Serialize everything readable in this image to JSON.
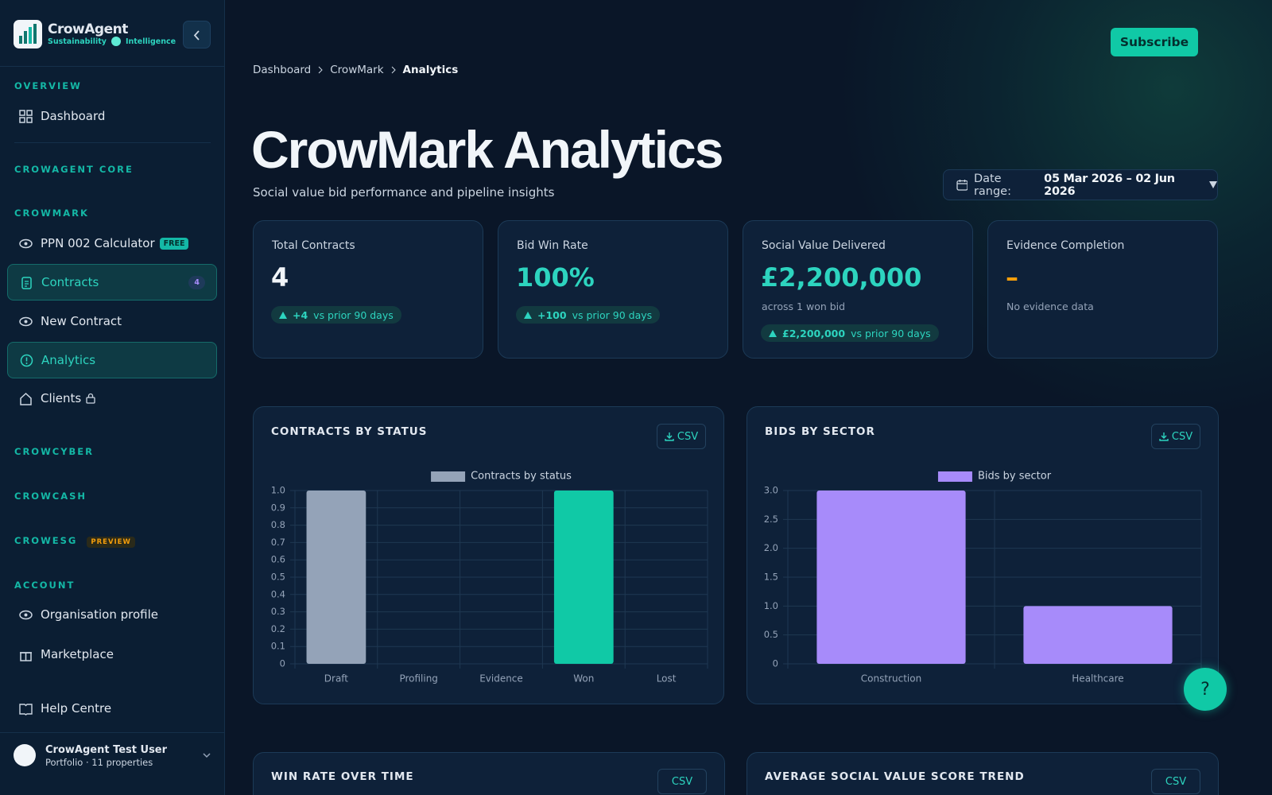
{
  "sidebar": {
    "brand": "CrowAgent",
    "tagline_left": "Sustainability",
    "tagline_right": "Intelligence",
    "overview": "OVERVIEW",
    "dashboard": "Dashboard",
    "core": "CROWAGENT CORE",
    "crowmark": "CROWMARK",
    "items": [
      {
        "label": "PPN 002 Calculator",
        "badge": "FREE"
      },
      {
        "label": "Contracts",
        "badge": 4
      },
      {
        "label": "New Contract"
      },
      {
        "label": "Analytics"
      },
      {
        "label": "Clients"
      }
    ],
    "crowcyber": "CROWCYBER",
    "crowcash": "CROWCASH",
    "crowesg": "CROWESG",
    "crowesg_badge": "PREVIEW",
    "account": "ACCOUNT",
    "account_items": [
      "Organisation profile",
      "Marketplace"
    ],
    "help": "Help Centre",
    "user": {
      "name": "CrowAgent Test User",
      "detail": "Portfolio · 11 properties"
    }
  },
  "header": {
    "subscribe": "Subscribe",
    "breadcrumb": [
      "Dashboard",
      "CrowMark",
      "Analytics"
    ],
    "title": "CrowMark Analytics",
    "subtitle": "Social value bid performance and pipeline insights",
    "date_range": {
      "label": "Date range:",
      "value": "05 Mar 2026 – 02 Jun 2026"
    }
  },
  "kpis": [
    {
      "label": "Total Contracts",
      "value": "4",
      "delta": "+4",
      "delta_text": "vs prior 90 days"
    },
    {
      "label": "Bid Win Rate",
      "value": "100%",
      "delta": "+100",
      "delta_text": "vs prior 90 days"
    },
    {
      "label": "Social Value Delivered",
      "value": "£2,200,000",
      "note": "across 1 won bid",
      "delta": "£2,200,000",
      "delta_text": "vs prior 90 days"
    },
    {
      "label": "Evidence Completion",
      "value": "–",
      "note": "No evidence data"
    }
  ],
  "chart_actions": [
    "CSV",
    "CSV",
    "CSV",
    "CSV"
  ],
  "chart_data": [
    {
      "type": "bar",
      "title": "CONTRACTS BY STATUS",
      "categories": [
        "Draft",
        "Profiling",
        "Evidence",
        "Won",
        "Lost"
      ],
      "series": [
        {
          "name": "Contracts by status",
          "color": "#94a3b8",
          "values": [
            1,
            0,
            0,
            1,
            0
          ],
          "bar_colors": [
            "#94a3b8",
            "#94a3b8",
            "#94a3b8",
            "#10c9a6",
            "#94a3b8"
          ]
        }
      ],
      "ylim": [
        0,
        1
      ],
      "yticks": [
        0,
        0.1,
        0.2,
        0.3,
        0.4,
        0.5,
        0.6,
        0.7,
        0.8,
        0.9,
        {
          "value": 1,
          "label": "1.0"
        }
      ],
      "grid": true
    },
    {
      "type": "bar",
      "title": "BIDS BY SECTOR",
      "categories": [
        "Construction",
        "Healthcare"
      ],
      "series": [
        {
          "name": "Bids by sector",
          "color": "#a78bfa",
          "values": [
            3,
            1
          ],
          "bar_colors": [
            "#a78bfa",
            "#a78bfa"
          ]
        }
      ],
      "ylim": [
        0,
        3
      ],
      "yticks": [
        0,
        0.5,
        {
          "value": 1,
          "label": "1.0"
        },
        1.5,
        {
          "value": 2,
          "label": "2.0"
        },
        2.5,
        {
          "value": 3,
          "label": "3.0"
        }
      ],
      "grid": true
    }
  ],
  "lower_cards": [
    "WIN RATE OVER TIME",
    "AVERAGE SOCIAL VALUE SCORE TREND"
  ],
  "help_button": "?"
}
